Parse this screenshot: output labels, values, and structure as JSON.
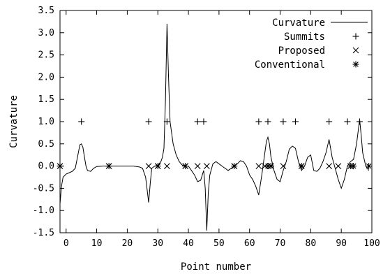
{
  "chart_data": {
    "type": "line",
    "xlabel": "Point number",
    "ylabel": "Curvature",
    "xlim": [
      -2,
      100
    ],
    "ylim": [
      -1.5,
      3.5
    ],
    "xticks": [
      0,
      10,
      20,
      30,
      40,
      50,
      60,
      70,
      80,
      90,
      100
    ],
    "yticks": [
      -1.5,
      -1.0,
      -0.5,
      0.0,
      0.5,
      1.0,
      1.5,
      2.0,
      2.5,
      3.0,
      3.5
    ],
    "ytick_labels": [
      "-1.5",
      "-1.0",
      "-0.5",
      "0.0",
      "0.5",
      "1.0",
      "1.5",
      "2.0",
      "2.5",
      "3.0",
      "3.5"
    ],
    "grid": false,
    "legend_position": "top-right",
    "series": [
      {
        "name": "Curvature",
        "style": "line",
        "points": [
          [
            -2,
            -0.85
          ],
          [
            -1.5,
            -0.45
          ],
          [
            -1,
            -0.25
          ],
          [
            0,
            -0.18
          ],
          [
            1,
            -0.15
          ],
          [
            2,
            -0.12
          ],
          [
            3,
            -0.05
          ],
          [
            4,
            0.3
          ],
          [
            4.5,
            0.48
          ],
          [
            5,
            0.5
          ],
          [
            5.5,
            0.42
          ],
          [
            6,
            0.2
          ],
          [
            6.5,
            0.0
          ],
          [
            7,
            -0.1
          ],
          [
            8,
            -0.12
          ],
          [
            9,
            -0.05
          ],
          [
            10,
            -0.01
          ],
          [
            12,
            0.0
          ],
          [
            14,
            0.0
          ],
          [
            16,
            0.0
          ],
          [
            18,
            0.0
          ],
          [
            20,
            0.0
          ],
          [
            22,
            0.0
          ],
          [
            24,
            -0.02
          ],
          [
            25,
            -0.05
          ],
          [
            26,
            -0.25
          ],
          [
            27,
            -0.82
          ],
          [
            27.5,
            -0.4
          ],
          [
            28,
            -0.05
          ],
          [
            29,
            0.0
          ],
          [
            30,
            0.02
          ],
          [
            31,
            0.1
          ],
          [
            31.5,
            0.2
          ],
          [
            32,
            0.4
          ],
          [
            32.5,
            1.5
          ],
          [
            33,
            3.2
          ],
          [
            33.5,
            2.0
          ],
          [
            34,
            1.0
          ],
          [
            35,
            0.5
          ],
          [
            36,
            0.25
          ],
          [
            37,
            0.1
          ],
          [
            38,
            0.02
          ],
          [
            39,
            0.0
          ],
          [
            40,
            0.0
          ],
          [
            41,
            -0.1
          ],
          [
            42,
            -0.2
          ],
          [
            43,
            -0.35
          ],
          [
            44,
            -0.32
          ],
          [
            45,
            -0.1
          ],
          [
            45.5,
            -0.5
          ],
          [
            46,
            -1.45
          ],
          [
            46.5,
            -0.6
          ],
          [
            47,
            -0.2
          ],
          [
            48,
            0.05
          ],
          [
            49,
            0.1
          ],
          [
            50,
            0.05
          ],
          [
            51,
            0.0
          ],
          [
            52,
            -0.05
          ],
          [
            53,
            -0.1
          ],
          [
            54,
            -0.05
          ],
          [
            55,
            0.0
          ],
          [
            56,
            0.05
          ],
          [
            57,
            0.12
          ],
          [
            58,
            0.1
          ],
          [
            59,
            0.0
          ],
          [
            60,
            -0.2
          ],
          [
            61,
            -0.3
          ],
          [
            62,
            -0.45
          ],
          [
            63,
            -0.65
          ],
          [
            64,
            -0.2
          ],
          [
            65,
            0.3
          ],
          [
            65.5,
            0.55
          ],
          [
            66,
            0.65
          ],
          [
            66.5,
            0.5
          ],
          [
            67,
            0.2
          ],
          [
            68,
            -0.1
          ],
          [
            69,
            -0.3
          ],
          [
            70,
            -0.35
          ],
          [
            71,
            -0.1
          ],
          [
            72,
            0.1
          ],
          [
            73,
            0.38
          ],
          [
            74,
            0.45
          ],
          [
            75,
            0.4
          ],
          [
            76,
            0.1
          ],
          [
            77,
            -0.1
          ],
          [
            78,
            0.0
          ],
          [
            79,
            0.2
          ],
          [
            80,
            0.25
          ],
          [
            81,
            -0.1
          ],
          [
            82,
            -0.12
          ],
          [
            83,
            -0.05
          ],
          [
            84,
            0.1
          ],
          [
            85,
            0.3
          ],
          [
            86,
            0.6
          ],
          [
            87,
            0.2
          ],
          [
            88,
            -0.05
          ],
          [
            89,
            -0.3
          ],
          [
            90,
            -0.5
          ],
          [
            91,
            -0.3
          ],
          [
            92,
            0.0
          ],
          [
            93,
            0.1
          ],
          [
            94,
            0.15
          ],
          [
            95,
            0.5
          ],
          [
            96,
            1.05
          ],
          [
            96.5,
            0.7
          ],
          [
            97,
            0.3
          ],
          [
            98,
            0.0
          ],
          [
            99,
            -0.1
          ]
        ]
      },
      {
        "name": "Summits",
        "style": "plus",
        "x": [
          5,
          27,
          33,
          43,
          45,
          63,
          66,
          71,
          75,
          86,
          92,
          96
        ],
        "y": [
          1,
          1,
          1,
          1,
          1,
          1,
          1,
          1,
          1,
          1,
          1,
          1
        ]
      },
      {
        "name": "Proposed",
        "style": "cross",
        "x": [
          -2,
          14,
          27,
          30,
          33,
          39,
          43,
          46,
          55,
          63,
          65,
          67,
          71,
          77,
          86,
          89,
          93
        ],
        "y": [
          0,
          0,
          0,
          0,
          0,
          0,
          0,
          0,
          0,
          0,
          0,
          0,
          0,
          0,
          0,
          0,
          0
        ]
      },
      {
        "name": "Conventional",
        "style": "star",
        "x": [
          -2,
          14,
          30,
          39,
          55,
          66,
          67,
          77,
          93,
          94,
          99
        ],
        "y": [
          0,
          0,
          0,
          0,
          0,
          0,
          0,
          0,
          0,
          0,
          0
        ]
      }
    ]
  }
}
